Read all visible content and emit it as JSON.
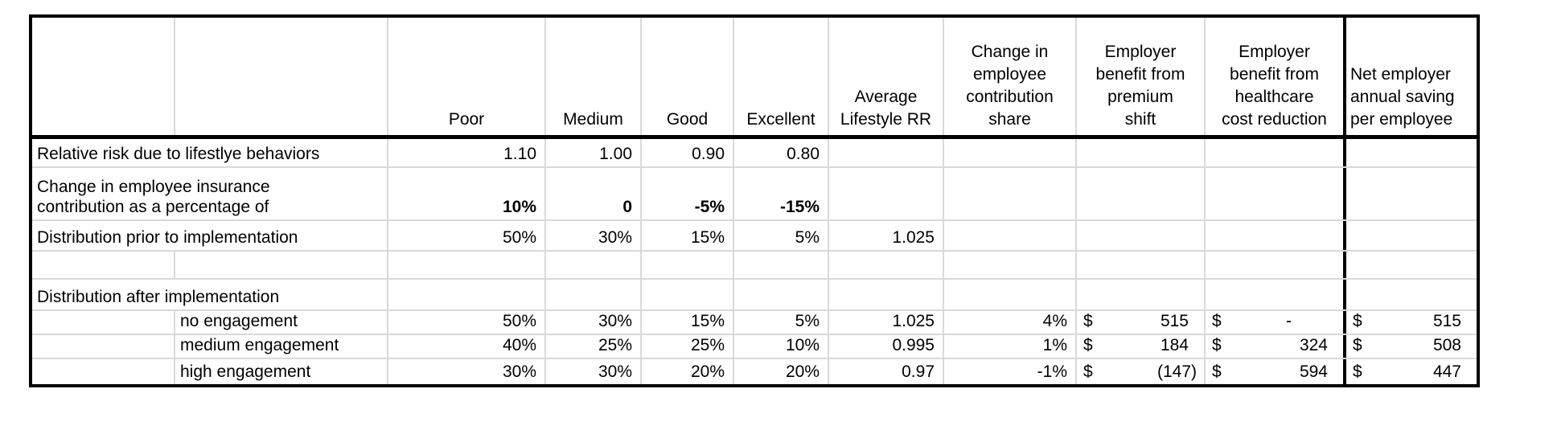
{
  "sheet": {
    "currency": "$",
    "header": {
      "poor": "Poor",
      "medium": "Medium",
      "good": "Good",
      "excellent": "Excellent",
      "avg_rr": "Average\nLifestyle RR",
      "contrib": "Change in\nemployee\ncontribution\nshare",
      "premium": "Employer\nbenefit from\npremium\nshift",
      "healthcare": "Employer\nbenefit from\nhealthcare\ncost reduction",
      "net": "Net employer\nannual saving\nper employee"
    },
    "rows": {
      "relative_risk": {
        "label": "Relative risk due to lifestlye behaviors",
        "poor": "1.10",
        "medium": "1.00",
        "good": "0.90",
        "excellent": "0.80"
      },
      "contribution_change": {
        "label": "Change in employee insurance\ncontribution as a percentage of",
        "poor": "10%",
        "medium": "0",
        "good": "-5%",
        "excellent": "-15%"
      },
      "dist_prior": {
        "label": "Distribution prior to implementation",
        "poor": "50%",
        "medium": "30%",
        "good": "15%",
        "excellent": "5%",
        "avg_rr": "1.025"
      },
      "dist_after": {
        "label": "Distribution after implementation"
      },
      "no_engagement": {
        "label": "no engagement",
        "poor": "50%",
        "medium": "30%",
        "good": "15%",
        "excellent": "5%",
        "avg_rr": "1.025",
        "contrib": "4%",
        "premium": "515",
        "healthcare": "-",
        "net": "515"
      },
      "medium_engagement": {
        "label": "medium engagement",
        "poor": "40%",
        "medium": "25%",
        "good": "25%",
        "excellent": "10%",
        "avg_rr": "0.995",
        "contrib": "1%",
        "premium": "184",
        "healthcare": "324",
        "net": "508"
      },
      "high_engagement": {
        "label": "high engagement",
        "poor": "30%",
        "medium": "30%",
        "good": "20%",
        "excellent": "20%",
        "avg_rr": "0.97",
        "contrib": "-1%",
        "premium": "(147)",
        "healthcare": "594",
        "net": "447"
      }
    }
  },
  "chart_data": {
    "type": "table",
    "columns": [
      "",
      "",
      "Poor",
      "Medium",
      "Good",
      "Excellent",
      "Average Lifestyle RR",
      "Change in employee contribution share",
      "Employer benefit from premium shift",
      "Employer benefit from healthcare cost reduction",
      "Net employer annual saving per employee"
    ],
    "rows": [
      [
        "Relative risk due to lifestlye behaviors",
        "",
        "1.10",
        "1.00",
        "0.90",
        "0.80",
        "",
        "",
        "",
        "",
        ""
      ],
      [
        "Change in employee insurance contribution as a percentage of",
        "",
        "10%",
        "0",
        "-5%",
        "-15%",
        "",
        "",
        "",
        "",
        ""
      ],
      [
        "Distribution prior to implementation",
        "",
        "50%",
        "30%",
        "15%",
        "5%",
        "1.025",
        "",
        "",
        "",
        ""
      ],
      [
        "",
        "",
        "",
        "",
        "",
        "",
        "",
        "",
        "",
        "",
        ""
      ],
      [
        "Distribution after implementation",
        "",
        "",
        "",
        "",
        "",
        "",
        "",
        "",
        "",
        ""
      ],
      [
        "",
        "no engagement",
        "50%",
        "30%",
        "15%",
        "5%",
        "1.025",
        "4%",
        "$ 515",
        "$ -",
        "$ 515"
      ],
      [
        "",
        "medium engagement",
        "40%",
        "25%",
        "25%",
        "10%",
        "0.995",
        "1%",
        "$ 184",
        "$ 324",
        "$ 508"
      ],
      [
        "",
        "high engagement",
        "30%",
        "30%",
        "20%",
        "20%",
        "0.97",
        "-1%",
        "$ (147)",
        "$ 594",
        "$ 447"
      ]
    ],
    "layout_hints": {
      "header_bottom_border": "thick black",
      "outer_border": "thick black",
      "last_column_box": "thick black",
      "gridline_color": "#d9d9d9",
      "bold_row": "Change in employee insurance contribution as a percentage of"
    }
  }
}
